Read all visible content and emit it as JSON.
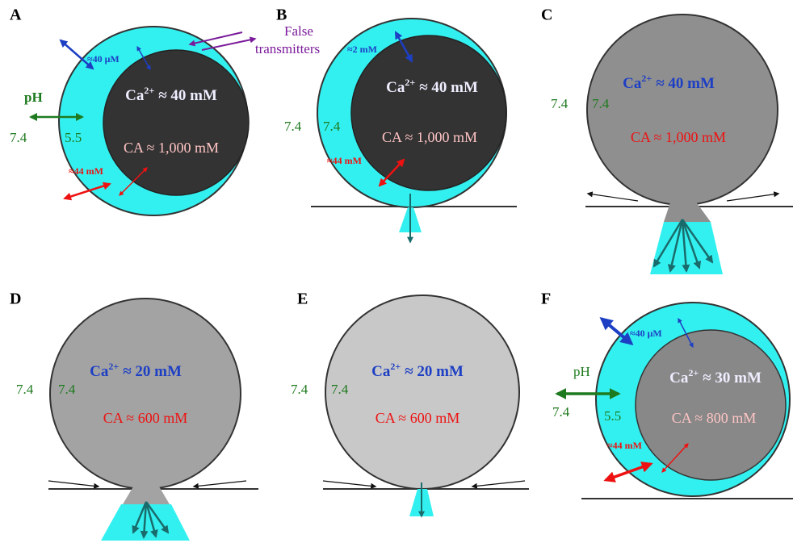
{
  "panels": [
    {
      "label": "A",
      "inner_conc": "≈40 μM",
      "false_transmitters": [
        "False",
        "transmitters"
      ],
      "ph": "pH",
      "ph_out": "7.4",
      "ph_in": "5.5",
      "calcium": {
        "symbol": "Ca",
        "charge": "2+",
        "value": "≈ 40 mM"
      },
      "catecholamine": "CA ≈ 1,000 mM",
      "membrane_conc": "≈44 mM"
    },
    {
      "label": "B",
      "inner_conc": "≈2 mM",
      "ph_out": "7.4",
      "ph_in": "7.4",
      "calcium": {
        "symbol": "Ca",
        "charge": "2+",
        "value": "≈ 40 mM"
      },
      "catecholamine": "CA ≈ 1,000 mM",
      "membrane_conc": "≈44 mM"
    },
    {
      "label": "C",
      "ph_out": "7.4",
      "ph_in": "7.4",
      "calcium": {
        "symbol": "Ca",
        "charge": "2+",
        "value": "≈ 40 mM"
      },
      "catecholamine": "CA ≈ 1,000 mM"
    },
    {
      "label": "D",
      "ph_out": "7.4",
      "ph_in": "7.4",
      "calcium": {
        "symbol": "Ca",
        "charge": "2+",
        "value": "≈ 20 mM"
      },
      "catecholamine": "CA ≈ 600 mM"
    },
    {
      "label": "E",
      "ph_out": "7.4",
      "ph_in": "7.4",
      "calcium": {
        "symbol": "Ca",
        "charge": "2+",
        "value": "≈ 20 mM"
      },
      "catecholamine": "CA ≈ 600 mM"
    },
    {
      "label": "F",
      "inner_conc": "≈40 μM",
      "ph": "pH",
      "ph_out": "7.4",
      "ph_in": "5.5",
      "calcium": {
        "symbol": "Ca",
        "charge": "2+",
        "value": "≈ 30 mM"
      },
      "catecholamine": "CA ≈ 800 mM",
      "membrane_conc": "≈44 mM"
    }
  ]
}
